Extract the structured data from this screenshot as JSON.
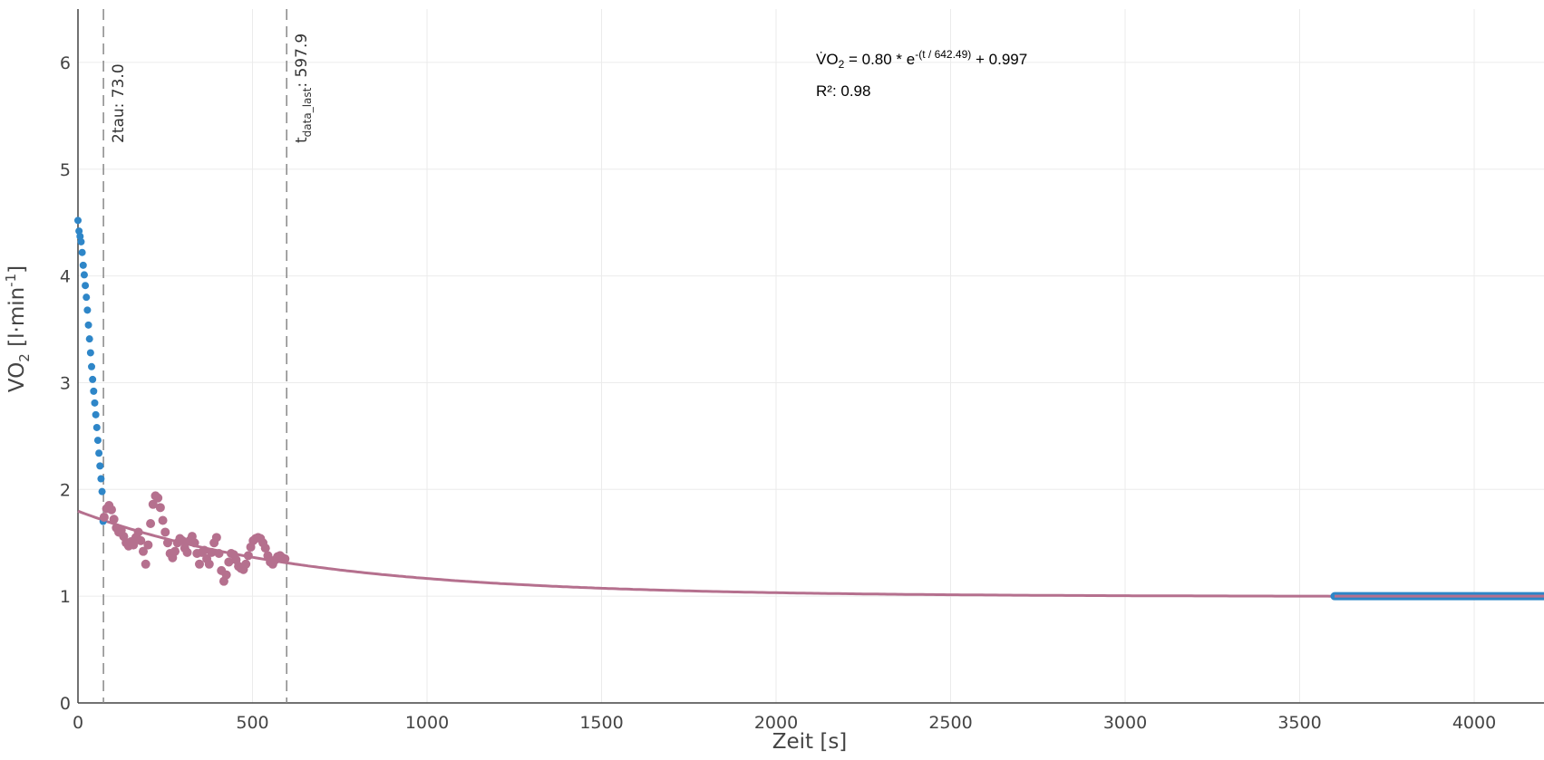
{
  "chart_data": {
    "type": "scatter",
    "xlabel": "Zeit [s]",
    "ylabel_main": "VO",
    "ylabel_sub": "2",
    "ylabel_mid": " [l·min",
    "ylabel_sup": "-1",
    "ylabel_end": "]",
    "xlim": [
      0,
      4200
    ],
    "ylim": [
      0,
      6.5
    ],
    "x_ticks": [
      0,
      500,
      1000,
      1500,
      2000,
      2500,
      3000,
      3500,
      4000
    ],
    "y_ticks": [
      0,
      1,
      2,
      3,
      4,
      5,
      6
    ],
    "grid": true,
    "colors": {
      "initial_series": "#2E86C8",
      "fit_series": "#B5708E",
      "vline": "#888888",
      "grid": "#EBEBEB",
      "axis": "#444444"
    },
    "vlines": [
      {
        "x": 73.0,
        "label_main": "2tau: 73.0",
        "label_sub": "",
        "label_tail": ""
      },
      {
        "x": 597.9,
        "label_main": "t",
        "label_sub": "data_last",
        "label_tail": ": 597.9"
      }
    ],
    "annotation": {
      "eq_prefix": "V̇O",
      "eq_sub": "2",
      "eq_mid": " = 0.80 * e",
      "eq_sup": "-(t / 642.49)",
      "eq_tail": " + 0.997",
      "r2": "R²: 0.98"
    },
    "fit": {
      "a": 0.8,
      "tau": 642.49,
      "c": 0.997,
      "x_start": 0,
      "x_end": 4200
    },
    "initial_points": {
      "x": [
        0,
        3,
        6,
        9,
        12,
        15,
        18,
        21,
        24,
        27,
        30,
        33,
        36,
        39,
        42,
        45,
        48,
        51,
        54,
        57,
        60,
        63,
        66,
        69,
        72
      ],
      "y": [
        4.52,
        4.42,
        4.37,
        4.32,
        4.22,
        4.1,
        4.01,
        3.91,
        3.8,
        3.68,
        3.54,
        3.41,
        3.28,
        3.15,
        3.03,
        2.92,
        2.81,
        2.7,
        2.58,
        2.46,
        2.34,
        2.22,
        2.1,
        1.98,
        1.7
      ]
    },
    "response_points": {
      "x": [
        75,
        82,
        89,
        96,
        103,
        110,
        117,
        124,
        131,
        138,
        145,
        152,
        159,
        166,
        173,
        180,
        187,
        194,
        201,
        208,
        215,
        222,
        229,
        236,
        243,
        250,
        257,
        264,
        271,
        278,
        285,
        292,
        299,
        306,
        313,
        320,
        327,
        334,
        341,
        348,
        355,
        362,
        369,
        376,
        383,
        390,
        397,
        404,
        411,
        418,
        425,
        432,
        439,
        446,
        453,
        460,
        467,
        474,
        481,
        488,
        495,
        502,
        509,
        516,
        523,
        530,
        537,
        544,
        551,
        558,
        565,
        572,
        579,
        586,
        593
      ],
      "y": [
        1.74,
        1.82,
        1.85,
        1.81,
        1.72,
        1.64,
        1.6,
        1.62,
        1.56,
        1.5,
        1.47,
        1.51,
        1.48,
        1.55,
        1.6,
        1.52,
        1.42,
        1.3,
        1.48,
        1.68,
        1.86,
        1.94,
        1.92,
        1.83,
        1.71,
        1.6,
        1.5,
        1.4,
        1.36,
        1.42,
        1.5,
        1.54,
        1.52,
        1.45,
        1.41,
        1.52,
        1.56,
        1.5,
        1.4,
        1.3,
        1.41,
        1.43,
        1.35,
        1.3,
        1.41,
        1.5,
        1.55,
        1.4,
        1.24,
        1.14,
        1.2,
        1.32,
        1.4,
        1.39,
        1.34,
        1.28,
        1.26,
        1.25,
        1.3,
        1.38,
        1.46,
        1.52,
        1.54,
        1.55,
        1.54,
        1.5,
        1.45,
        1.38,
        1.32,
        1.3,
        1.34,
        1.37,
        1.38,
        1.36,
        1.35
      ]
    },
    "steady_band": {
      "x_start": 3600,
      "x_end": 4200,
      "y": 1.0
    }
  }
}
